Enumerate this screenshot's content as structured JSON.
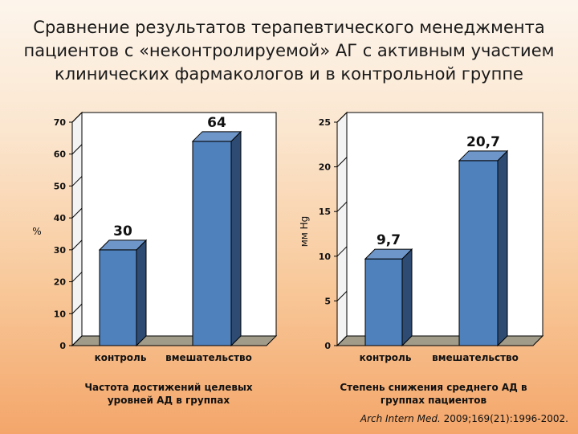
{
  "title": "Сравнение результатов терапевтического менеджмента пациентов с «неконтролируемой» АГ с активным участием клинических фармакологов и в контрольной группе",
  "source": {
    "journal": "Arch Intern Med.",
    "ref": "2009;169(21):1996-2002."
  },
  "colors": {
    "bar_front": "#4f81bd",
    "bar_side": "#2e4c73",
    "bar_top": "#6f96c9",
    "floor": "#a19c8a",
    "wall": "#ffffff",
    "grid": "#000000"
  },
  "chart_data": [
    {
      "type": "bar",
      "categories": [
        "контроль",
        "вмешательство"
      ],
      "values": [
        30,
        64
      ],
      "data_labels": [
        "30",
        "64"
      ],
      "ylabel": "%",
      "ylim": [
        0,
        70
      ],
      "yticks": [
        0,
        10,
        20,
        30,
        40,
        50,
        60,
        70
      ],
      "grid": false,
      "caption": "Частота достижений целевых уровней АД в группах"
    },
    {
      "type": "bar",
      "categories": [
        "контроль",
        "вмешательство"
      ],
      "values": [
        9.7,
        20.7
      ],
      "data_labels": [
        "9,7",
        "20,7"
      ],
      "ylabel": "мм Hg",
      "ylim": [
        0,
        25
      ],
      "yticks": [
        0,
        5,
        10,
        15,
        20,
        25
      ],
      "grid": false,
      "caption": "Степень снижения среднего АД в группах пациентов"
    }
  ]
}
